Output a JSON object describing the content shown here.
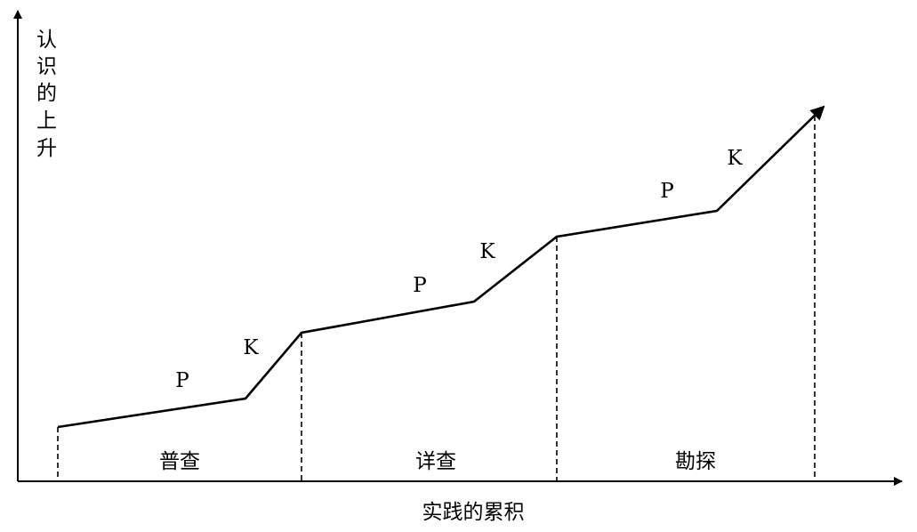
{
  "axes": {
    "y_label_chars": [
      "认",
      "识",
      "的",
      "上",
      "升"
    ],
    "x_label": "实践的累积"
  },
  "stages": [
    {
      "label": "普查",
      "p": "P",
      "k": "K"
    },
    {
      "label": "详查",
      "p": "P",
      "k": "K"
    },
    {
      "label": "勘探",
      "p": "P",
      "k": "K"
    }
  ],
  "colors": {
    "line": "#000000",
    "background": "#ffffff"
  }
}
